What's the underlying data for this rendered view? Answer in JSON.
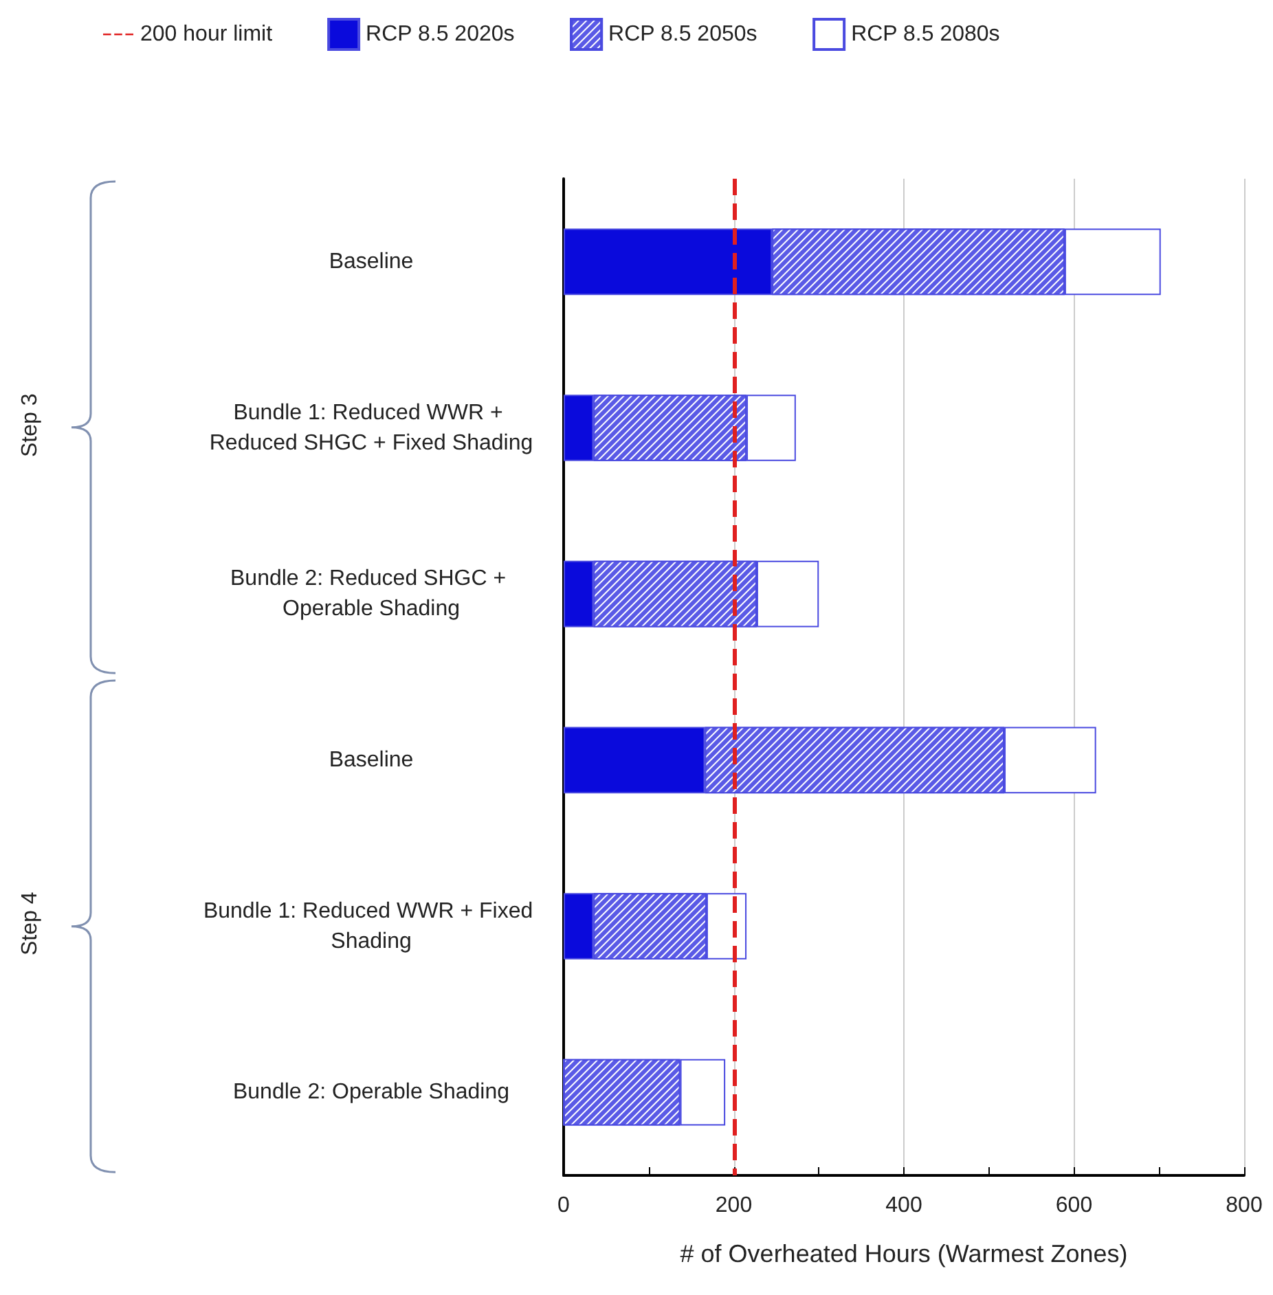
{
  "chart_data": {
    "type": "bar",
    "orientation": "horizontal",
    "stacked": true,
    "categories": [
      "Baseline",
      "Bundle 1: Reduced WWR + Reduced SHGC + Fixed Shading",
      "Bundle 2: Reduced SHGC + Operable Shading",
      "Baseline",
      "Bundle 1: Reduced WWR + Fixed Shading",
      "Bundle 2: Operable Shading"
    ],
    "series": [
      {
        "name": "RCP 8.5 2020s",
        "color": "#0a0adc",
        "values": [
          245,
          35,
          35,
          166,
          35,
          0
        ]
      },
      {
        "name": "RCP 8.5 2050s",
        "color": "#5a5ae6",
        "values": [
          344,
          180,
          192,
          352,
          133,
          137
        ]
      },
      {
        "name": "RCP 8.5 2080s",
        "color": "#ffffff",
        "values": [
          113,
          58,
          73,
          108,
          47,
          53
        ]
      }
    ],
    "xlabel": "# of Overheated Hours (Warmest Zones)",
    "xlim": [
      0,
      800
    ],
    "xticks": [
      0,
      200,
      400,
      600,
      800
    ],
    "ref_lines": [
      {
        "axis": "x",
        "value": 200,
        "label": "200 hour limit",
        "color": "#e02020",
        "line_style": "dashed"
      }
    ],
    "annotations": [
      "Step 3",
      "Step 4"
    ],
    "grid": "x",
    "legend": "top"
  }
}
